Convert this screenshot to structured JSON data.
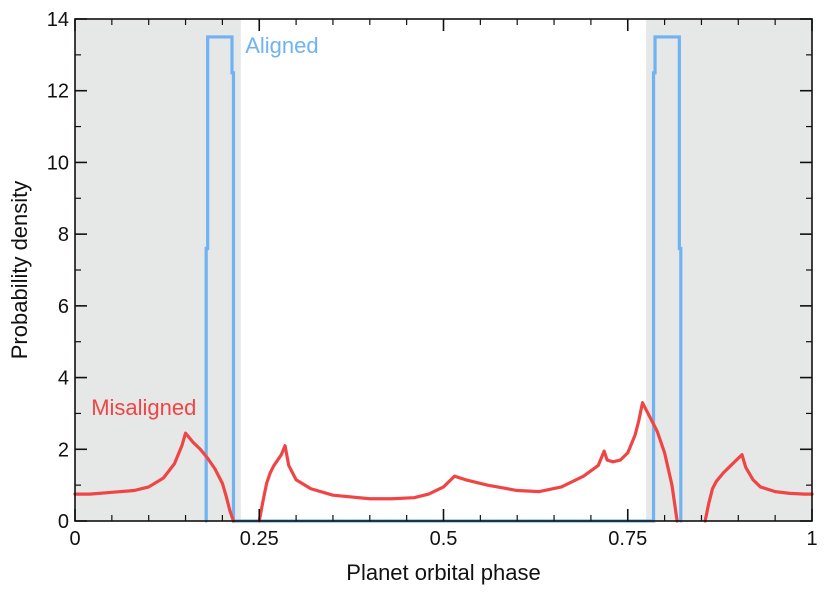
{
  "chart_data": {
    "type": "line",
    "xlabel": "Planet orbital phase",
    "ylabel": "Probability density",
    "xlim": [
      0,
      1
    ],
    "ylim": [
      0,
      14
    ],
    "x_ticks": [
      0,
      0.25,
      0.5,
      0.75,
      1
    ],
    "x_tick_labels": [
      "0",
      "0.25",
      "0.5",
      "0.75",
      "1"
    ],
    "y_ticks": [
      0,
      2,
      4,
      6,
      8,
      10,
      12,
      14
    ],
    "y_tick_labels": [
      "0",
      "2",
      "4",
      "6",
      "8",
      "10",
      "12",
      "14"
    ],
    "grid": false,
    "shaded_regions": [
      {
        "x": [
          0,
          0.225
        ],
        "color": "#e6e7e7"
      },
      {
        "x": [
          0.775,
          1
        ],
        "color": "#e6e7e7"
      }
    ],
    "series": [
      {
        "name": "Aligned",
        "color": "#6fb3f2",
        "style": "step",
        "x": [
          0.178,
          0.178,
          0.18,
          0.18,
          0.213,
          0.213,
          0.215,
          0.215,
          0.785,
          0.785,
          0.787,
          0.787,
          0.82,
          0.82,
          0.822,
          0.822
        ],
        "y": [
          0,
          7.6,
          7.6,
          13.5,
          13.5,
          12.5,
          12.5,
          0,
          0,
          12.5,
          12.5,
          13.5,
          13.5,
          7.6,
          7.6,
          0
        ]
      },
      {
        "name": "Misaligned",
        "color": "#f04545",
        "segments": [
          {
            "x": [
              0,
              0.02,
              0.05,
              0.08,
              0.1,
              0.12,
              0.135,
              0.145,
              0.15,
              0.16,
              0.17,
              0.18,
              0.19,
              0.2,
              0.205,
              0.21,
              0.215
            ],
            "y": [
              0.75,
              0.75,
              0.8,
              0.85,
              0.95,
              1.2,
              1.6,
              2.1,
              2.45,
              2.2,
              2.0,
              1.75,
              1.45,
              1.05,
              0.7,
              0.3,
              0
            ]
          },
          {
            "x": [
              0.25,
              0.255,
              0.26,
              0.265,
              0.27,
              0.275,
              0.28,
              0.285,
              0.29,
              0.3,
              0.32,
              0.35,
              0.4,
              0.43,
              0.46,
              0.48,
              0.5,
              0.51,
              0.515,
              0.53,
              0.56,
              0.6,
              0.63,
              0.66,
              0.69,
              0.71,
              0.718,
              0.722,
              0.73,
              0.74,
              0.75,
              0.76,
              0.765,
              0.77,
              0.775,
              0.78,
              0.79,
              0.8,
              0.81,
              0.817
            ],
            "y": [
              0,
              0.55,
              1.05,
              1.35,
              1.55,
              1.7,
              1.85,
              2.1,
              1.55,
              1.15,
              0.9,
              0.72,
              0.62,
              0.62,
              0.65,
              0.75,
              0.95,
              1.15,
              1.25,
              1.15,
              1.0,
              0.85,
              0.82,
              0.95,
              1.25,
              1.55,
              1.95,
              1.7,
              1.65,
              1.7,
              1.9,
              2.4,
              2.8,
              3.3,
              3.1,
              2.9,
              2.5,
              1.9,
              1.0,
              0
            ]
          },
          {
            "x": [
              0.855,
              0.86,
              0.865,
              0.87,
              0.88,
              0.89,
              0.9,
              0.905,
              0.91,
              0.92,
              0.93,
              0.95,
              0.97,
              0.99,
              1.0
            ],
            "y": [
              0,
              0.5,
              0.9,
              1.1,
              1.35,
              1.55,
              1.75,
              1.85,
              1.5,
              1.15,
              0.95,
              0.82,
              0.77,
              0.75,
              0.75
            ]
          }
        ]
      }
    ],
    "annotations": [
      {
        "text": "Aligned",
        "color": "#6fb3f2",
        "x": 0.231,
        "y": 13.05
      },
      {
        "text": "Misaligned",
        "color": "#f04545",
        "x": 0.022,
        "y": 2.95
      }
    ]
  }
}
